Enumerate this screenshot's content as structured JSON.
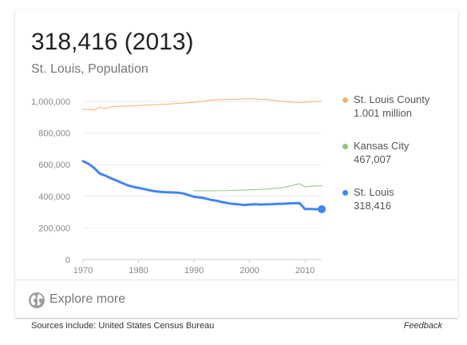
{
  "headline": "318,416 (2013)",
  "subtitle": "St. Louis, Population",
  "explore_label": "Explore more",
  "sources": "Sources include: United States Census Bureau",
  "feedback": "Feedback",
  "icons": {
    "explore": "globe-icon"
  },
  "legend": [
    {
      "name": "St. Louis County",
      "value": "1.001 million",
      "color": "#f6b26b"
    },
    {
      "name": "Kansas City",
      "value": "467,007",
      "color": "#93c47d"
    },
    {
      "name": "St. Louis",
      "value": "318,416",
      "color": "#4285f4"
    }
  ],
  "chart_data": {
    "type": "line",
    "xlim": [
      1970,
      2013
    ],
    "ylim": [
      0,
      1000000
    ],
    "x_ticks": [
      1970,
      1980,
      1990,
      2000,
      2010
    ],
    "x_tick_labels": [
      "1970",
      "1980",
      "1990",
      "2000",
      "2010"
    ],
    "y_ticks": [
      0,
      200000,
      400000,
      600000,
      800000,
      1000000
    ],
    "y_tick_labels": [
      "0",
      "200,000",
      "400,000",
      "600,000",
      "800,000",
      "1,000,000"
    ],
    "grid": "horizontal",
    "legend_position": "right",
    "series": [
      {
        "name": "St. Louis County",
        "color": "#f6b26b",
        "stroke": 1,
        "x": [
          1970,
          1971,
          1972,
          1973,
          1974,
          1975,
          1976,
          1978,
          1980,
          1983,
          1986,
          1990,
          1993,
          1996,
          2000,
          2003,
          2006,
          2009,
          2011,
          2013
        ],
        "y": [
          951000,
          950000,
          945000,
          962000,
          955000,
          965000,
          968000,
          970000,
          974000,
          980000,
          985000,
          994000,
          1008000,
          1012000,
          1016000,
          1012000,
          1000000,
          992000,
          998000,
          1001000
        ]
      },
      {
        "name": "Kansas City",
        "color": "#93c47d",
        "stroke": 1,
        "x": [
          1990,
          1993,
          1996,
          2000,
          2003,
          2006,
          2008,
          2009,
          2010,
          2011,
          2013
        ],
        "y": [
          435000,
          435000,
          436000,
          441000,
          445000,
          455000,
          470000,
          480000,
          459000,
          463000,
          467007
        ]
      },
      {
        "name": "St. Louis",
        "color": "#4285f4",
        "stroke": 3,
        "x": [
          1970,
          1971,
          1972,
          1973,
          1974,
          1975,
          1976,
          1977,
          1978,
          1979,
          1980,
          1981,
          1982,
          1983,
          1984,
          1985,
          1986,
          1987,
          1988,
          1989,
          1990,
          1991,
          1992,
          1993,
          1994,
          1995,
          1996,
          1997,
          1998,
          1999,
          2000,
          2001,
          2002,
          2003,
          2004,
          2005,
          2006,
          2007,
          2008,
          2009,
          2010,
          2011,
          2012,
          2013
        ],
        "y": [
          622000,
          605000,
          580000,
          544000,
          531000,
          514000,
          500000,
          485000,
          470000,
          460000,
          453000,
          446000,
          438000,
          432000,
          428000,
          426000,
          425000,
          423000,
          418000,
          408000,
          397000,
          393000,
          387000,
          378000,
          372000,
          364000,
          357000,
          352000,
          349000,
          345000,
          348000,
          350000,
          348000,
          349000,
          350000,
          352000,
          353000,
          355000,
          356000,
          357000,
          319000,
          319000,
          318000,
          318416
        ]
      }
    ]
  }
}
